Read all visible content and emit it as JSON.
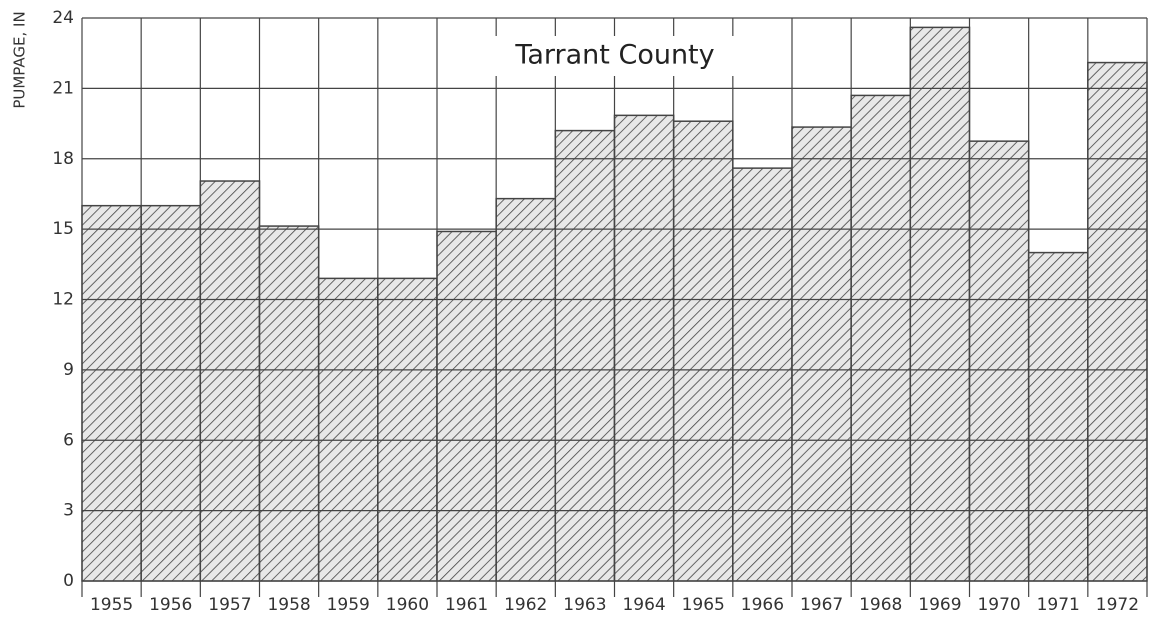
{
  "chart_data": {
    "type": "bar",
    "title": "Tarrant County",
    "ylabel": "PUMPAGE, IN",
    "categories": [
      "1955",
      "1956",
      "1957",
      "1958",
      "1959",
      "1960",
      "1961",
      "1962",
      "1963",
      "1964",
      "1965",
      "1966",
      "1967",
      "1968",
      "1969",
      "1970",
      "1971",
      "1972"
    ],
    "values": [
      16.0,
      16.0,
      17.05,
      15.13,
      12.9,
      12.9,
      14.9,
      16.3,
      19.2,
      19.85,
      19.6,
      17.6,
      19.35,
      20.7,
      23.6,
      18.75,
      14.0,
      22.1
    ],
    "color": "#444444",
    "ylim": [
      0,
      24
    ],
    "yticks": [
      0,
      3,
      6,
      9,
      12,
      15,
      18,
      21,
      24
    ],
    "grid": true
  }
}
